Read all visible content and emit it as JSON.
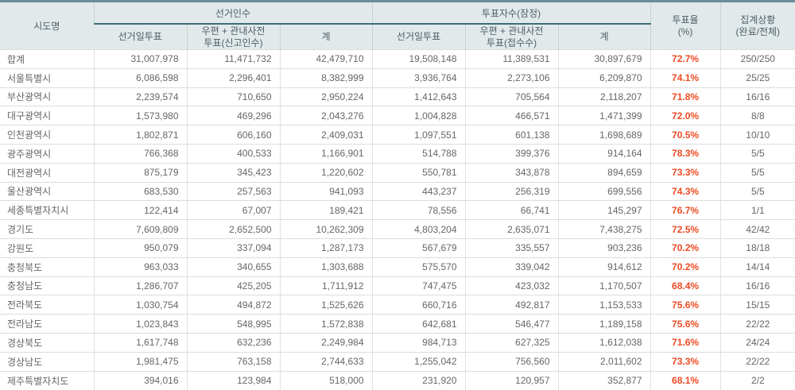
{
  "colors": {
    "top_border": "#6b8e99",
    "header_bg": "#e1e9ea",
    "group_underline": "#3f6d7a",
    "turnout_text": "#ee4a23",
    "body_text": "#666666"
  },
  "table": {
    "header": {
      "sido": "시도명",
      "electors_group": "선거인수",
      "voters_group": "투표자수(잠정)",
      "electors_sub": [
        "선거일투표",
        "우편 + 관내사전\n투표(신고인수)",
        "계"
      ],
      "voters_sub": [
        "선거일투표",
        "우편 + 관내사전\n투표(접수수)",
        "계"
      ],
      "turnout": "투표율\n(%)",
      "status": "집계상황\n(완료/전체)"
    },
    "rows": [
      [
        "합계",
        "31,007,978",
        "11,471,732",
        "42,479,710",
        "19,508,148",
        "11,389,531",
        "30,897,679",
        "72.7%",
        "250/250"
      ],
      [
        "서울특별시",
        "6,086,598",
        "2,296,401",
        "8,382,999",
        "3,936,764",
        "2,273,106",
        "6,209,870",
        "74.1%",
        "25/25"
      ],
      [
        "부산광역시",
        "2,239,574",
        "710,650",
        "2,950,224",
        "1,412,643",
        "705,564",
        "2,118,207",
        "71.8%",
        "16/16"
      ],
      [
        "대구광역시",
        "1,573,980",
        "469,296",
        "2,043,276",
        "1,004,828",
        "466,571",
        "1,471,399",
        "72.0%",
        "8/8"
      ],
      [
        "인천광역시",
        "1,802,871",
        "606,160",
        "2,409,031",
        "1,097,551",
        "601,138",
        "1,698,689",
        "70.5%",
        "10/10"
      ],
      [
        "광주광역시",
        "766,368",
        "400,533",
        "1,166,901",
        "514,788",
        "399,376",
        "914,164",
        "78.3%",
        "5/5"
      ],
      [
        "대전광역시",
        "875,179",
        "345,423",
        "1,220,602",
        "550,781",
        "343,878",
        "894,659",
        "73.3%",
        "5/5"
      ],
      [
        "울산광역시",
        "683,530",
        "257,563",
        "941,093",
        "443,237",
        "256,319",
        "699,556",
        "74.3%",
        "5/5"
      ],
      [
        "세종특별자치시",
        "122,414",
        "67,007",
        "189,421",
        "78,556",
        "66,741",
        "145,297",
        "76.7%",
        "1/1"
      ],
      [
        "경기도",
        "7,609,809",
        "2,652,500",
        "10,262,309",
        "4,803,204",
        "2,635,071",
        "7,438,275",
        "72.5%",
        "42/42"
      ],
      [
        "강원도",
        "950,079",
        "337,094",
        "1,287,173",
        "567,679",
        "335,557",
        "903,236",
        "70.2%",
        "18/18"
      ],
      [
        "충청북도",
        "963,033",
        "340,655",
        "1,303,688",
        "575,570",
        "339,042",
        "914,612",
        "70.2%",
        "14/14"
      ],
      [
        "충청남도",
        "1,286,707",
        "425,205",
        "1,711,912",
        "747,475",
        "423,032",
        "1,170,507",
        "68.4%",
        "16/16"
      ],
      [
        "전라북도",
        "1,030,754",
        "494,872",
        "1,525,626",
        "660,716",
        "492,817",
        "1,153,533",
        "75.6%",
        "15/15"
      ],
      [
        "전라남도",
        "1,023,843",
        "548,995",
        "1,572,838",
        "642,681",
        "546,477",
        "1,189,158",
        "75.6%",
        "22/22"
      ],
      [
        "경상북도",
        "1,617,748",
        "632,236",
        "2,249,984",
        "984,713",
        "627,325",
        "1,612,038",
        "71.6%",
        "24/24"
      ],
      [
        "경상남도",
        "1,981,475",
        "763,158",
        "2,744,633",
        "1,255,042",
        "756,560",
        "2,011,602",
        "73.3%",
        "22/22"
      ],
      [
        "제주특별자치도",
        "394,016",
        "123,984",
        "518,000",
        "231,920",
        "120,957",
        "352,877",
        "68.1%",
        "2/2"
      ]
    ]
  }
}
